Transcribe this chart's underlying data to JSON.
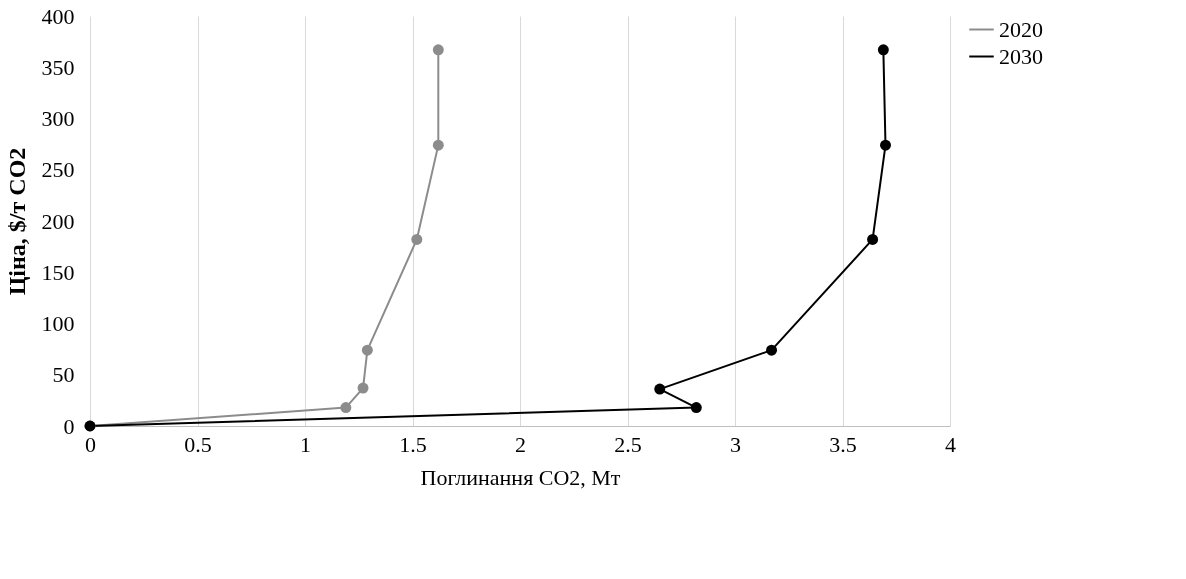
{
  "chart_data": {
    "type": "line",
    "xlabel": "Поглинання CO2, Мт",
    "ylabel": "Ціна, $/т CO2",
    "xlim": [
      0,
      4
    ],
    "xticks": [
      0,
      0.5,
      1,
      1.5,
      2,
      2.5,
      3,
      3.5,
      4
    ],
    "ylim": [
      0,
      400
    ],
    "yticks": [
      0,
      50,
      100,
      150,
      200,
      250,
      300,
      350,
      400
    ],
    "grid": "x",
    "legend": "right",
    "marker": "circle",
    "line_style": "solid",
    "series": [
      {
        "name": "2020",
        "color": "#8c8c8c",
        "x": [
          0,
          1.19,
          1.27,
          1.29,
          1.52,
          1.62,
          1.62
        ],
        "values": [
          0,
          18,
          37,
          74,
          182,
          274,
          367
        ]
      },
      {
        "name": "2030",
        "color": "#000000",
        "x": [
          0,
          2.82,
          2.65,
          3.17,
          3.64,
          3.7,
          3.69
        ],
        "values": [
          0,
          18,
          36,
          74,
          182,
          274,
          367
        ]
      }
    ]
  }
}
